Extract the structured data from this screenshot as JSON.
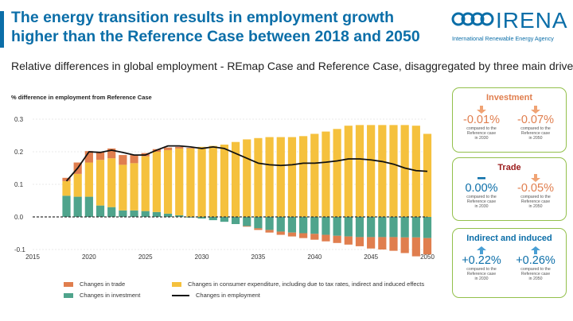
{
  "header": {
    "title": "The energy transition results in employment growth higher than the Reference Case between 2018 and 2050",
    "subtitle": "Relative differences in global employment - REmap Case and Reference Case, disaggregated by three main drivers"
  },
  "logo": {
    "name": "IRENA",
    "tagline": "International Renewable Energy Agency"
  },
  "colors": {
    "trade": "#e07e4e",
    "consumer": "#f5c13d",
    "investment": "#4fa48c",
    "employment": "#111111",
    "accent": "#0b6ea8",
    "box_border": "#93c04b"
  },
  "chart_data": {
    "type": "bar",
    "stacked": true,
    "ylabel": "% difference in employment from Reference Case",
    "xlim": [
      2015,
      2050
    ],
    "ylim": [
      -0.1,
      0.3
    ],
    "x_ticks": [
      "2015",
      "2020",
      "2025",
      "2030",
      "2035",
      "2040",
      "2045",
      "2050"
    ],
    "y_ticks": [
      "0.3",
      "0.2",
      "0.1",
      "0.0",
      "-0.1"
    ],
    "grid": true,
    "x": [
      2018,
      2019,
      2020,
      2021,
      2022,
      2023,
      2024,
      2025,
      2026,
      2027,
      2028,
      2029,
      2030,
      2031,
      2032,
      2033,
      2034,
      2035,
      2036,
      2037,
      2038,
      2039,
      2040,
      2041,
      2042,
      2043,
      2044,
      2045,
      2046,
      2047,
      2048,
      2049,
      2050
    ],
    "series": [
      {
        "name": "Changes in investment",
        "values": [
          0.065,
          0.062,
          0.062,
          0.035,
          0.03,
          0.02,
          0.02,
          0.018,
          0.015,
          0.01,
          0.005,
          -0.002,
          -0.005,
          -0.01,
          -0.015,
          -0.022,
          -0.028,
          -0.035,
          -0.04,
          -0.045,
          -0.048,
          -0.05,
          -0.052,
          -0.055,
          -0.058,
          -0.06,
          -0.062,
          -0.062,
          -0.062,
          -0.062,
          -0.063,
          -0.063,
          -0.065
        ]
      },
      {
        "name": "Changes in consumer expenditure, including due to tax rates, indirect and induced effects",
        "values": [
          0.045,
          0.07,
          0.105,
          0.14,
          0.15,
          0.14,
          0.145,
          0.168,
          0.185,
          0.195,
          0.205,
          0.21,
          0.215,
          0.218,
          0.222,
          0.23,
          0.238,
          0.242,
          0.245,
          0.245,
          0.245,
          0.248,
          0.255,
          0.262,
          0.27,
          0.28,
          0.282,
          0.282,
          0.282,
          0.282,
          0.282,
          0.28,
          0.255
        ]
      },
      {
        "name": "Changes in trade",
        "values": [
          0.01,
          0.035,
          0.035,
          0.025,
          0.03,
          0.03,
          0.025,
          0.01,
          0.008,
          0.008,
          0.005,
          0.002,
          0.0,
          0.0,
          0.0,
          0.0,
          -0.002,
          -0.005,
          -0.008,
          -0.01,
          -0.012,
          -0.015,
          -0.018,
          -0.02,
          -0.022,
          -0.025,
          -0.028,
          -0.035,
          -0.038,
          -0.042,
          -0.048,
          -0.058,
          -0.05
        ]
      }
    ],
    "employment": {
      "name": "Changes in employment",
      "values": [
        0.11,
        0.15,
        0.2,
        0.198,
        0.205,
        0.198,
        0.19,
        0.19,
        0.205,
        0.218,
        0.218,
        0.215,
        0.21,
        0.215,
        0.21,
        0.195,
        0.18,
        0.165,
        0.16,
        0.158,
        0.16,
        0.165,
        0.165,
        0.168,
        0.172,
        0.178,
        0.178,
        0.175,
        0.17,
        0.162,
        0.15,
        0.142,
        0.14
      ]
    }
  },
  "drivers": [
    {
      "title": "Investment",
      "title_color": "#e07e4e",
      "items": [
        {
          "arrow": "down-arrow-icon",
          "value": "-0.01%",
          "note": [
            "compared to the",
            "Reference case",
            "in 2030"
          ],
          "color": "#e07e4e"
        },
        {
          "arrow": "down-arrow-icon",
          "value": "-0.07%",
          "note": [
            "compared to the",
            "Reference case",
            "in 2050"
          ],
          "color": "#e07e4e"
        }
      ]
    },
    {
      "title": "Trade",
      "title_color": "#9b1c1c",
      "items": [
        {
          "arrow": "dash-icon",
          "value": "0.00%",
          "note": [
            "compared to the",
            "Reference case",
            "in 2030"
          ],
          "color": "#0b6ea8"
        },
        {
          "arrow": "down-arrow-icon",
          "value": "-0.05%",
          "note": [
            "compared to the",
            "Reference case",
            "in 2050"
          ],
          "color": "#e07e4e"
        }
      ]
    },
    {
      "title": "Indirect and induced",
      "title_color": "#0b6ea8",
      "items": [
        {
          "arrow": "up-arrow-icon",
          "value": "+0.22%",
          "note": [
            "compared to the",
            "Reference case",
            "in 2030"
          ],
          "color": "#0b6ea8"
        },
        {
          "arrow": "up-arrow-icon",
          "value": "+0.26%",
          "note": [
            "compared to the",
            "Reference case",
            "in 2050"
          ],
          "color": "#0b6ea8"
        }
      ]
    }
  ]
}
